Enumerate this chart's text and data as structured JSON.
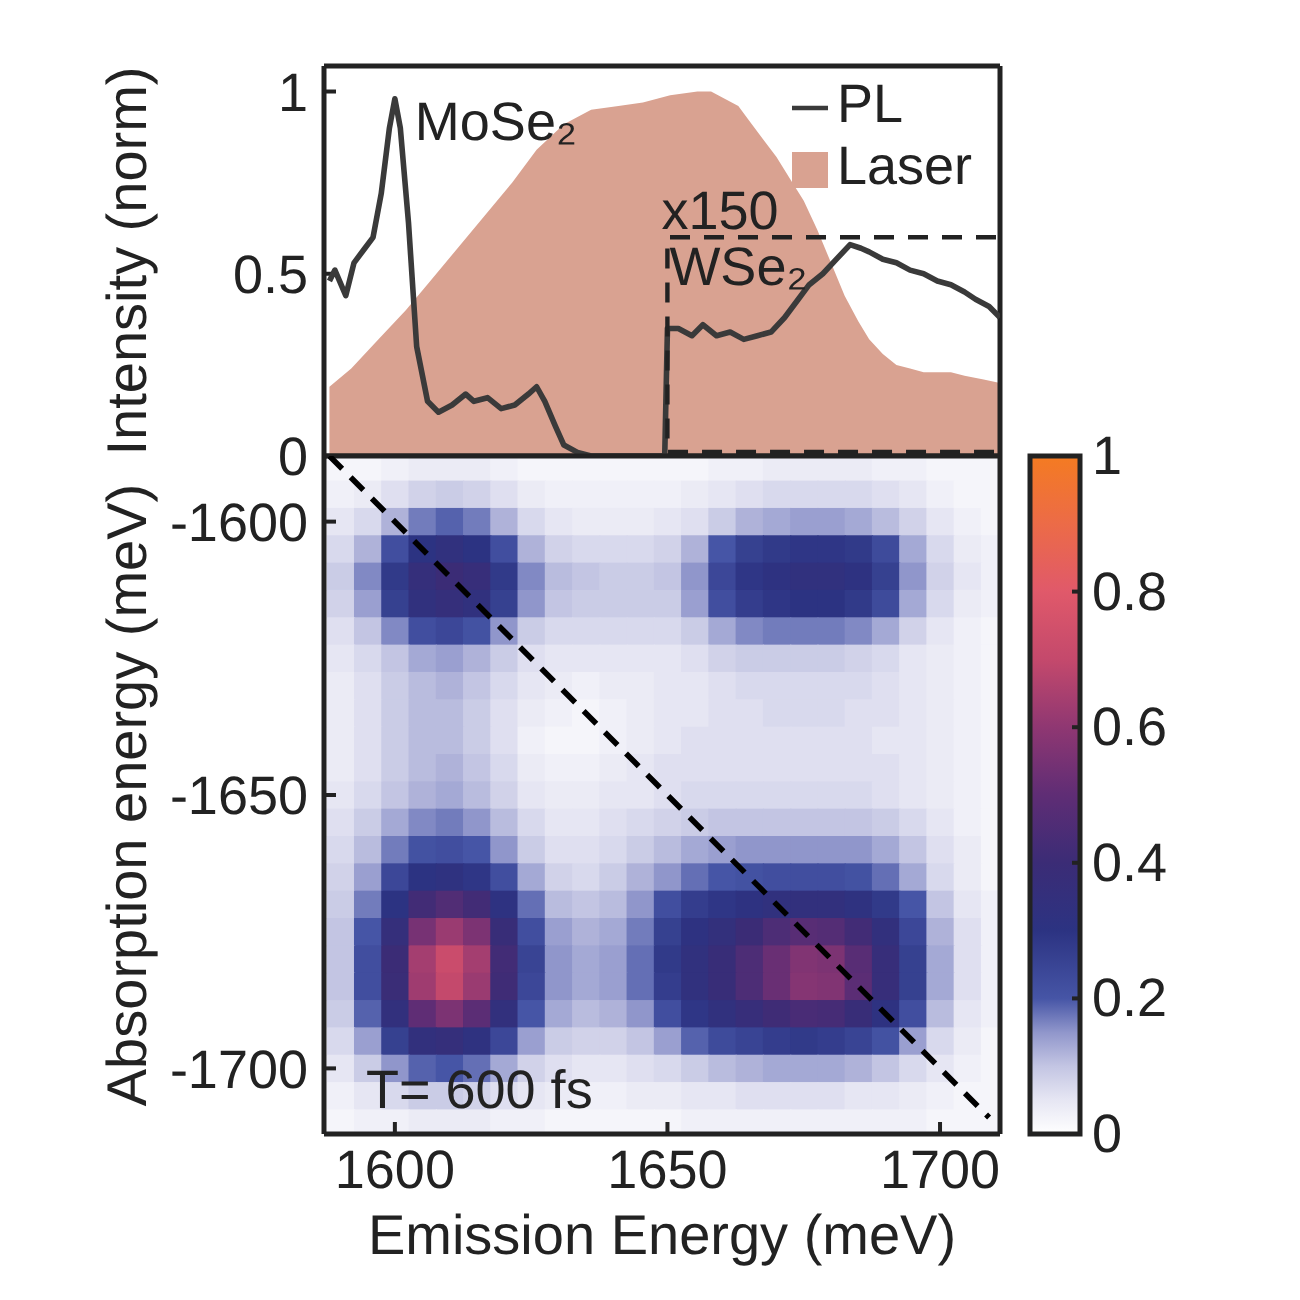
{
  "chart_data": [
    {
      "type": "line",
      "ylabel": "Intensity (norm)",
      "xlim": [
        1587,
        1711
      ],
      "xticks": [
        1600,
        1650,
        1700
      ],
      "ylim": [
        0,
        1.07
      ],
      "yticks": [
        0,
        0.5,
        1
      ],
      "tick_labels": "y",
      "legend": "top right",
      "annotations": [
        {
          "text": "MoSe₂",
          "x": 1600,
          "y": 0.97
        },
        "x150",
        "WSe₂"
      ],
      "series": [
        {
          "name": "PL",
          "type": "line",
          "color": "#3a3a3a",
          "x": [
            1588,
            1589,
            1591,
            1592.5,
            1594.5,
            1596,
            1597.5,
            1599,
            1600,
            1601,
            1602.5,
            1604,
            1606,
            1608,
            1610.5,
            1613,
            1614.5,
            1617,
            1619.5,
            1622,
            1624.5,
            1626,
            1627.5,
            1629.5,
            1631,
            1633.5,
            1636,
            1649.5,
            1650,
            1652,
            1654.5,
            1656.5,
            1659,
            1661.5,
            1664,
            1666.5,
            1669,
            1671.5,
            1674,
            1676,
            1678.5,
            1681,
            1683.5,
            1685.5,
            1687,
            1689.5,
            1692,
            1694.5,
            1697,
            1699.5,
            1702,
            1704.5,
            1706.5,
            1709,
            1711
          ],
          "values": [
            0.48,
            0.51,
            0.44,
            0.53,
            0.57,
            0.6,
            0.72,
            0.9,
            0.98,
            0.9,
            0.64,
            0.3,
            0.15,
            0.12,
            0.14,
            0.17,
            0.15,
            0.16,
            0.13,
            0.14,
            0.17,
            0.19,
            0.15,
            0.08,
            0.03,
            0.01,
            0,
            0,
            0.35,
            0.35,
            0.33,
            0.36,
            0.33,
            0.34,
            0.32,
            0.33,
            0.34,
            0.38,
            0.43,
            0.47,
            0.5,
            0.54,
            0.58,
            0.57,
            0.56,
            0.54,
            0.53,
            0.51,
            0.5,
            0.48,
            0.47,
            0.45,
            0.43,
            0.41,
            0.38
          ]
        },
        {
          "name": "Laser",
          "type": "area",
          "color": "#d9a291",
          "x": [
            1588,
            1592,
            1597,
            1602,
            1606.5,
            1611.5,
            1616.5,
            1621.5,
            1626,
            1631,
            1636,
            1641,
            1645.5,
            1650.5,
            1655.5,
            1658,
            1660.5,
            1663,
            1665,
            1667.5,
            1670,
            1672.5,
            1675,
            1677.5,
            1680,
            1682.5,
            1685,
            1687,
            1689.5,
            1692,
            1694.5,
            1697,
            1699.5,
            1702,
            1704.5,
            1708,
            1711
          ],
          "values": [
            0.19,
            0.24,
            0.32,
            0.4,
            0.48,
            0.57,
            0.66,
            0.75,
            0.84,
            0.91,
            0.95,
            0.96,
            0.97,
            0.99,
            1,
            1,
            0.98,
            0.96,
            0.92,
            0.87,
            0.82,
            0.76,
            0.7,
            0.62,
            0.53,
            0.44,
            0.37,
            0.32,
            0.28,
            0.25,
            0.24,
            0.23,
            0.23,
            0.23,
            0.22,
            0.21,
            0.2
          ]
        }
      ]
    },
    {
      "type": "heatmap",
      "xlabel": "Emission Energy (meV)",
      "ylabel": "Absorption energy (meV)",
      "xlim": [
        1587,
        1711
      ],
      "xticks": [
        1600,
        1650,
        1700
      ],
      "ylim": [
        -1712,
        -1588
      ],
      "yticks": [
        -1600,
        -1650,
        -1700
      ],
      "clim": [
        0,
        1
      ],
      "cticks": [
        0,
        0.2,
        0.4,
        0.6,
        0.8,
        1
      ],
      "annotations": [
        "T= 600 fs"
      ],
      "x": [
        1590,
        1595,
        1600,
        1605,
        1610,
        1615,
        1620,
        1625,
        1630,
        1635,
        1640,
        1645,
        1650,
        1655,
        1660,
        1665,
        1670,
        1675,
        1680,
        1685,
        1690,
        1695,
        1700,
        1705,
        1710
      ],
      "y": [
        -1590,
        -1595,
        -1600,
        -1605,
        -1610,
        -1615,
        -1620,
        -1625,
        -1630,
        -1635,
        -1640,
        -1645,
        -1650,
        -1655,
        -1660,
        -1665,
        -1670,
        -1675,
        -1680,
        -1685,
        -1690,
        -1695,
        -1700,
        -1705,
        -1710
      ],
      "cells": [
        [
          0.02,
          0.02,
          0.03,
          0.04,
          0.04,
          0.04,
          0.03,
          0.02,
          0.02,
          0.02,
          0.02,
          0.02,
          0.02,
          0.02,
          0.03,
          0.03,
          0.04,
          0.04,
          0.04,
          0.04,
          0.03,
          0.03,
          0.02,
          0.02,
          0.02
        ],
        [
          0.03,
          0.04,
          0.06,
          0.08,
          0.09,
          0.08,
          0.06,
          0.04,
          0.03,
          0.03,
          0.03,
          0.03,
          0.03,
          0.04,
          0.05,
          0.06,
          0.07,
          0.07,
          0.07,
          0.07,
          0.06,
          0.05,
          0.03,
          0.02,
          0.02
        ],
        [
          0.05,
          0.07,
          0.12,
          0.17,
          0.19,
          0.17,
          0.12,
          0.07,
          0.05,
          0.04,
          0.04,
          0.04,
          0.05,
          0.06,
          0.09,
          0.12,
          0.13,
          0.14,
          0.14,
          0.13,
          0.11,
          0.08,
          0.05,
          0.03,
          0.02
        ],
        [
          0.07,
          0.12,
          0.22,
          0.3,
          0.33,
          0.3,
          0.22,
          0.12,
          0.08,
          0.07,
          0.07,
          0.07,
          0.08,
          0.12,
          0.2,
          0.26,
          0.28,
          0.29,
          0.29,
          0.28,
          0.23,
          0.13,
          0.07,
          0.04,
          0.03
        ],
        [
          0.09,
          0.16,
          0.28,
          0.36,
          0.4,
          0.37,
          0.28,
          0.16,
          0.11,
          0.1,
          0.09,
          0.09,
          0.1,
          0.15,
          0.24,
          0.29,
          0.31,
          0.33,
          0.33,
          0.31,
          0.26,
          0.15,
          0.08,
          0.05,
          0.03
        ],
        [
          0.08,
          0.14,
          0.26,
          0.33,
          0.36,
          0.33,
          0.26,
          0.15,
          0.1,
          0.09,
          0.09,
          0.09,
          0.09,
          0.14,
          0.22,
          0.27,
          0.29,
          0.3,
          0.3,
          0.28,
          0.23,
          0.13,
          0.07,
          0.04,
          0.03
        ],
        [
          0.06,
          0.1,
          0.16,
          0.22,
          0.24,
          0.21,
          0.15,
          0.09,
          0.07,
          0.07,
          0.07,
          0.07,
          0.07,
          0.09,
          0.13,
          0.16,
          0.17,
          0.17,
          0.17,
          0.16,
          0.13,
          0.08,
          0.05,
          0.03,
          0.02
        ],
        [
          0.05,
          0.07,
          0.1,
          0.13,
          0.14,
          0.12,
          0.09,
          0.06,
          0.05,
          0.05,
          0.05,
          0.05,
          0.05,
          0.06,
          0.08,
          0.09,
          0.09,
          0.09,
          0.09,
          0.08,
          0.07,
          0.05,
          0.04,
          0.03,
          0.02
        ],
        [
          0.04,
          0.06,
          0.09,
          0.11,
          0.12,
          0.1,
          0.07,
          0.05,
          0.04,
          0.03,
          0.04,
          0.04,
          0.05,
          0.05,
          0.06,
          0.07,
          0.07,
          0.07,
          0.07,
          0.07,
          0.06,
          0.05,
          0.04,
          0.03,
          0.02
        ],
        [
          0.04,
          0.06,
          0.09,
          0.11,
          0.11,
          0.09,
          0.06,
          0.04,
          0.03,
          0.02,
          0.03,
          0.04,
          0.05,
          0.05,
          0.06,
          0.06,
          0.07,
          0.07,
          0.07,
          0.06,
          0.06,
          0.05,
          0.04,
          0.03,
          0.02
        ],
        [
          0.04,
          0.06,
          0.09,
          0.11,
          0.11,
          0.09,
          0.06,
          0.03,
          0.02,
          0.02,
          0.03,
          0.04,
          0.05,
          0.06,
          0.06,
          0.06,
          0.06,
          0.06,
          0.06,
          0.06,
          0.05,
          0.05,
          0.04,
          0.03,
          0.02
        ],
        [
          0.04,
          0.06,
          0.09,
          0.11,
          0.12,
          0.1,
          0.07,
          0.04,
          0.03,
          0.03,
          0.04,
          0.05,
          0.06,
          0.06,
          0.06,
          0.06,
          0.06,
          0.06,
          0.06,
          0.06,
          0.06,
          0.05,
          0.04,
          0.03,
          0.02
        ],
        [
          0.05,
          0.07,
          0.1,
          0.12,
          0.13,
          0.11,
          0.08,
          0.05,
          0.04,
          0.04,
          0.05,
          0.05,
          0.06,
          0.07,
          0.07,
          0.07,
          0.07,
          0.07,
          0.07,
          0.07,
          0.06,
          0.05,
          0.04,
          0.03,
          0.02
        ],
        [
          0.06,
          0.09,
          0.13,
          0.16,
          0.17,
          0.15,
          0.11,
          0.07,
          0.05,
          0.05,
          0.06,
          0.07,
          0.08,
          0.09,
          0.1,
          0.1,
          0.1,
          0.1,
          0.1,
          0.1,
          0.09,
          0.07,
          0.05,
          0.03,
          0.02
        ],
        [
          0.07,
          0.11,
          0.17,
          0.21,
          0.22,
          0.2,
          0.15,
          0.09,
          0.06,
          0.06,
          0.07,
          0.09,
          0.11,
          0.13,
          0.14,
          0.15,
          0.15,
          0.15,
          0.15,
          0.15,
          0.13,
          0.1,
          0.06,
          0.04,
          0.02
        ],
        [
          0.08,
          0.14,
          0.24,
          0.3,
          0.32,
          0.29,
          0.22,
          0.13,
          0.08,
          0.07,
          0.09,
          0.12,
          0.15,
          0.18,
          0.2,
          0.21,
          0.22,
          0.22,
          0.22,
          0.21,
          0.18,
          0.13,
          0.07,
          0.04,
          0.02
        ],
        [
          0.09,
          0.17,
          0.3,
          0.42,
          0.46,
          0.42,
          0.31,
          0.18,
          0.11,
          0.1,
          0.11,
          0.15,
          0.22,
          0.27,
          0.29,
          0.31,
          0.33,
          0.34,
          0.34,
          0.32,
          0.28,
          0.2,
          0.1,
          0.05,
          0.03
        ],
        [
          0.1,
          0.2,
          0.36,
          0.55,
          0.62,
          0.56,
          0.38,
          0.22,
          0.14,
          0.12,
          0.13,
          0.17,
          0.26,
          0.31,
          0.35,
          0.4,
          0.45,
          0.48,
          0.47,
          0.42,
          0.34,
          0.24,
          0.12,
          0.06,
          0.03
        ],
        [
          0.1,
          0.22,
          0.4,
          0.64,
          0.72,
          0.64,
          0.42,
          0.25,
          0.15,
          0.13,
          0.14,
          0.18,
          0.28,
          0.33,
          0.38,
          0.45,
          0.52,
          0.57,
          0.56,
          0.48,
          0.37,
          0.26,
          0.13,
          0.06,
          0.03
        ],
        [
          0.1,
          0.22,
          0.39,
          0.63,
          0.7,
          0.62,
          0.41,
          0.24,
          0.15,
          0.13,
          0.14,
          0.18,
          0.27,
          0.33,
          0.38,
          0.45,
          0.52,
          0.58,
          0.57,
          0.49,
          0.37,
          0.26,
          0.13,
          0.06,
          0.03
        ],
        [
          0.09,
          0.19,
          0.34,
          0.5,
          0.56,
          0.49,
          0.34,
          0.2,
          0.13,
          0.11,
          0.12,
          0.15,
          0.22,
          0.29,
          0.33,
          0.37,
          0.41,
          0.44,
          0.43,
          0.38,
          0.31,
          0.22,
          0.11,
          0.05,
          0.03
        ],
        [
          0.07,
          0.14,
          0.26,
          0.34,
          0.36,
          0.32,
          0.24,
          0.14,
          0.09,
          0.08,
          0.08,
          0.1,
          0.14,
          0.19,
          0.23,
          0.25,
          0.27,
          0.28,
          0.27,
          0.25,
          0.21,
          0.14,
          0.07,
          0.04,
          0.02
        ],
        [
          0.05,
          0.09,
          0.15,
          0.19,
          0.2,
          0.18,
          0.13,
          0.08,
          0.06,
          0.05,
          0.05,
          0.06,
          0.07,
          0.09,
          0.11,
          0.12,
          0.13,
          0.13,
          0.13,
          0.12,
          0.1,
          0.07,
          0.05,
          0.03,
          0.02
        ],
        [
          0.03,
          0.05,
          0.07,
          0.09,
          0.09,
          0.08,
          0.06,
          0.05,
          0.04,
          0.03,
          0.03,
          0.04,
          0.04,
          0.05,
          0.05,
          0.06,
          0.06,
          0.06,
          0.06,
          0.05,
          0.05,
          0.04,
          0.03,
          0.02,
          0.02
        ],
        [
          0.02,
          0.03,
          0.03,
          0.04,
          0.04,
          0.04,
          0.03,
          0.03,
          0.02,
          0.02,
          0.02,
          0.02,
          0.02,
          0.03,
          0.03,
          0.03,
          0.03,
          0.03,
          0.03,
          0.03,
          0.03,
          0.03,
          0.02,
          0.02,
          0.02
        ]
      ],
      "series": [
        {
          "type": "line",
          "color": "#000000",
          "line_style": "dashed",
          "x": [
            1588,
            1709
          ],
          "values": [
            -1588,
            -1709
          ]
        }
      ]
    }
  ]
}
